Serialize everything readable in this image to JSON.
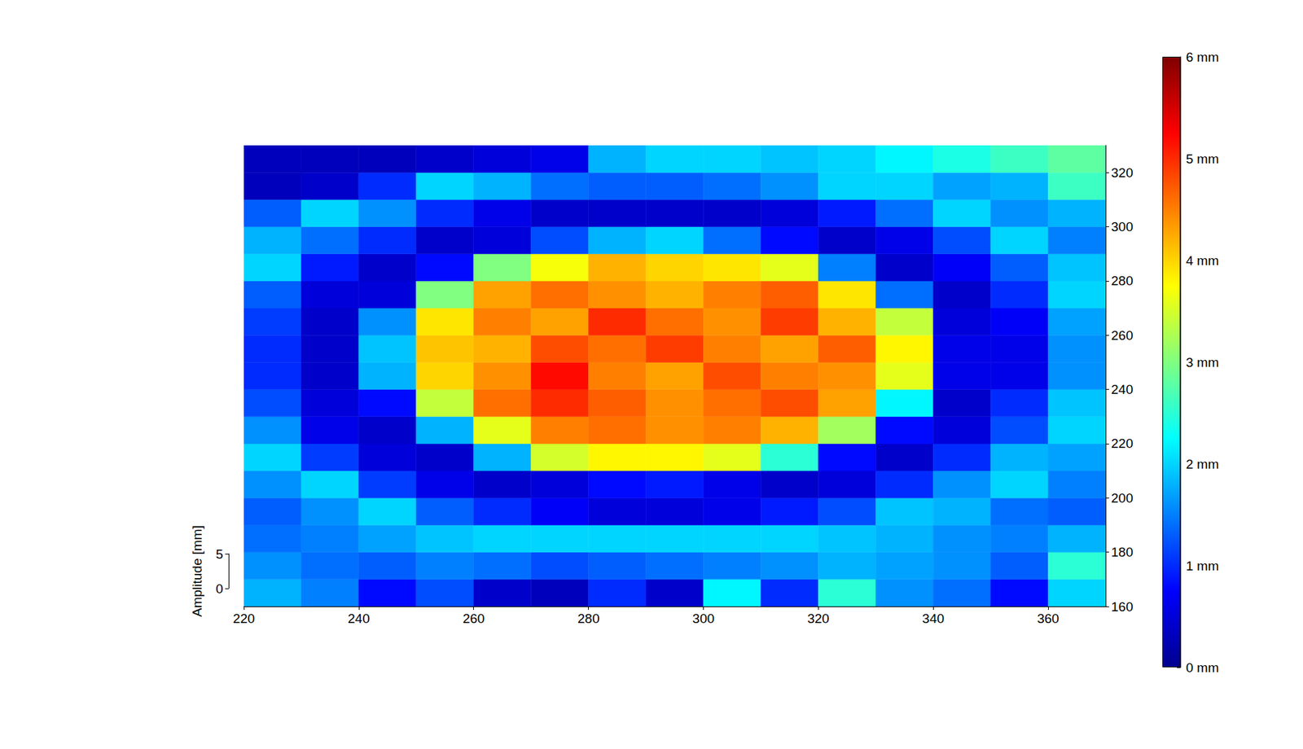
{
  "chart_data": {
    "type": "surface",
    "x": [
      225,
      235,
      245,
      255,
      265,
      275,
      285,
      295,
      305,
      315,
      325,
      335,
      345,
      355,
      365
    ],
    "y": [
      165,
      175,
      185,
      195,
      205,
      215,
      225,
      235,
      245,
      255,
      265,
      275,
      285,
      295,
      305,
      315,
      325
    ],
    "z": [
      [
        1.8,
        1.5,
        0.8,
        1.2,
        0.4,
        0.3,
        1.0,
        0.4,
        2.2,
        1.0,
        2.5,
        1.6,
        1.4,
        0.8,
        2.0
      ],
      [
        1.6,
        1.4,
        1.3,
        1.5,
        1.4,
        1.2,
        1.3,
        1.4,
        1.5,
        1.6,
        1.8,
        1.7,
        1.6,
        1.3,
        2.5
      ],
      [
        1.4,
        1.5,
        1.7,
        1.9,
        2.0,
        2.0,
        2.0,
        2.0,
        2.0,
        2.0,
        1.9,
        1.8,
        1.6,
        1.5,
        1.8
      ],
      [
        1.3,
        1.6,
        2.0,
        1.3,
        1.0,
        0.7,
        0.5,
        0.5,
        0.6,
        0.9,
        1.2,
        1.9,
        1.8,
        1.4,
        1.3
      ],
      [
        1.6,
        2.0,
        1.1,
        0.6,
        0.4,
        0.5,
        0.8,
        0.9,
        0.6,
        0.4,
        0.5,
        1.0,
        1.6,
        2.0,
        1.5
      ],
      [
        2.0,
        1.1,
        0.5,
        0.4,
        1.8,
        3.5,
        3.8,
        3.8,
        3.6,
        2.5,
        0.8,
        0.4,
        1.0,
        1.8,
        1.7
      ],
      [
        1.6,
        0.6,
        0.4,
        1.8,
        3.6,
        4.5,
        4.6,
        4.4,
        4.5,
        4.2,
        3.2,
        0.8,
        0.5,
        1.2,
        2.0
      ],
      [
        1.2,
        0.5,
        0.8,
        3.4,
        4.6,
        5.0,
        4.7,
        4.4,
        4.6,
        4.8,
        4.3,
        2.2,
        0.4,
        1.0,
        1.9
      ],
      [
        1.0,
        0.4,
        1.8,
        4.0,
        4.4,
        5.2,
        4.5,
        4.3,
        4.8,
        4.5,
        4.4,
        3.6,
        0.6,
        0.6,
        1.6
      ],
      [
        1.0,
        0.4,
        1.9,
        4.1,
        4.2,
        4.8,
        4.6,
        4.9,
        4.5,
        4.3,
        4.7,
        3.8,
        0.6,
        0.6,
        1.6
      ],
      [
        1.1,
        0.4,
        1.6,
        3.9,
        4.5,
        4.3,
        5.0,
        4.6,
        4.4,
        4.9,
        4.2,
        3.4,
        0.5,
        0.7,
        1.7
      ],
      [
        1.3,
        0.5,
        0.5,
        3.0,
        4.3,
        4.6,
        4.4,
        4.2,
        4.5,
        4.7,
        3.9,
        1.4,
        0.4,
        1.0,
        2.0
      ],
      [
        2.0,
        0.9,
        0.4,
        0.8,
        3.0,
        3.7,
        4.2,
        4.0,
        3.9,
        3.6,
        1.5,
        0.4,
        0.7,
        1.3,
        1.9
      ],
      [
        1.8,
        1.4,
        1.0,
        0.4,
        0.5,
        1.2,
        1.8,
        2.0,
        1.4,
        0.8,
        0.4,
        0.6,
        1.2,
        2.0,
        1.5
      ],
      [
        1.3,
        2.0,
        1.6,
        1.0,
        0.6,
        0.4,
        0.4,
        0.4,
        0.4,
        0.5,
        0.9,
        1.4,
        2.0,
        1.6,
        1.8
      ],
      [
        0.3,
        0.4,
        1.0,
        2.0,
        1.8,
        1.4,
        1.3,
        1.3,
        1.4,
        1.6,
        2.0,
        2.0,
        1.7,
        1.8,
        2.6
      ],
      [
        0.3,
        0.3,
        0.3,
        0.4,
        0.5,
        0.6,
        1.8,
        2.0,
        2.0,
        1.9,
        2.0,
        2.2,
        2.4,
        2.6,
        2.8
      ]
    ],
    "xlim": [
      220,
      370
    ],
    "xticks": [
      220,
      240,
      260,
      280,
      300,
      320,
      340,
      360
    ],
    "ylim": [
      160,
      330
    ],
    "yticks": [
      160,
      180,
      200,
      220,
      240,
      260,
      280,
      300,
      320
    ],
    "zlabel": "Amplitude [mm]",
    "zlim": [
      0,
      5
    ],
    "zticks": [
      0,
      5
    ],
    "clim": [
      0,
      6
    ],
    "cticks": [
      {
        "value": 0,
        "label": "0 mm"
      },
      {
        "value": 1,
        "label": "1 mm"
      },
      {
        "value": 2,
        "label": "2 mm"
      },
      {
        "value": 3,
        "label": "3 mm"
      },
      {
        "value": 4,
        "label": "4 mm"
      },
      {
        "value": 5,
        "label": "5 mm"
      },
      {
        "value": 6,
        "label": "6 mm"
      }
    ],
    "grid": false
  }
}
